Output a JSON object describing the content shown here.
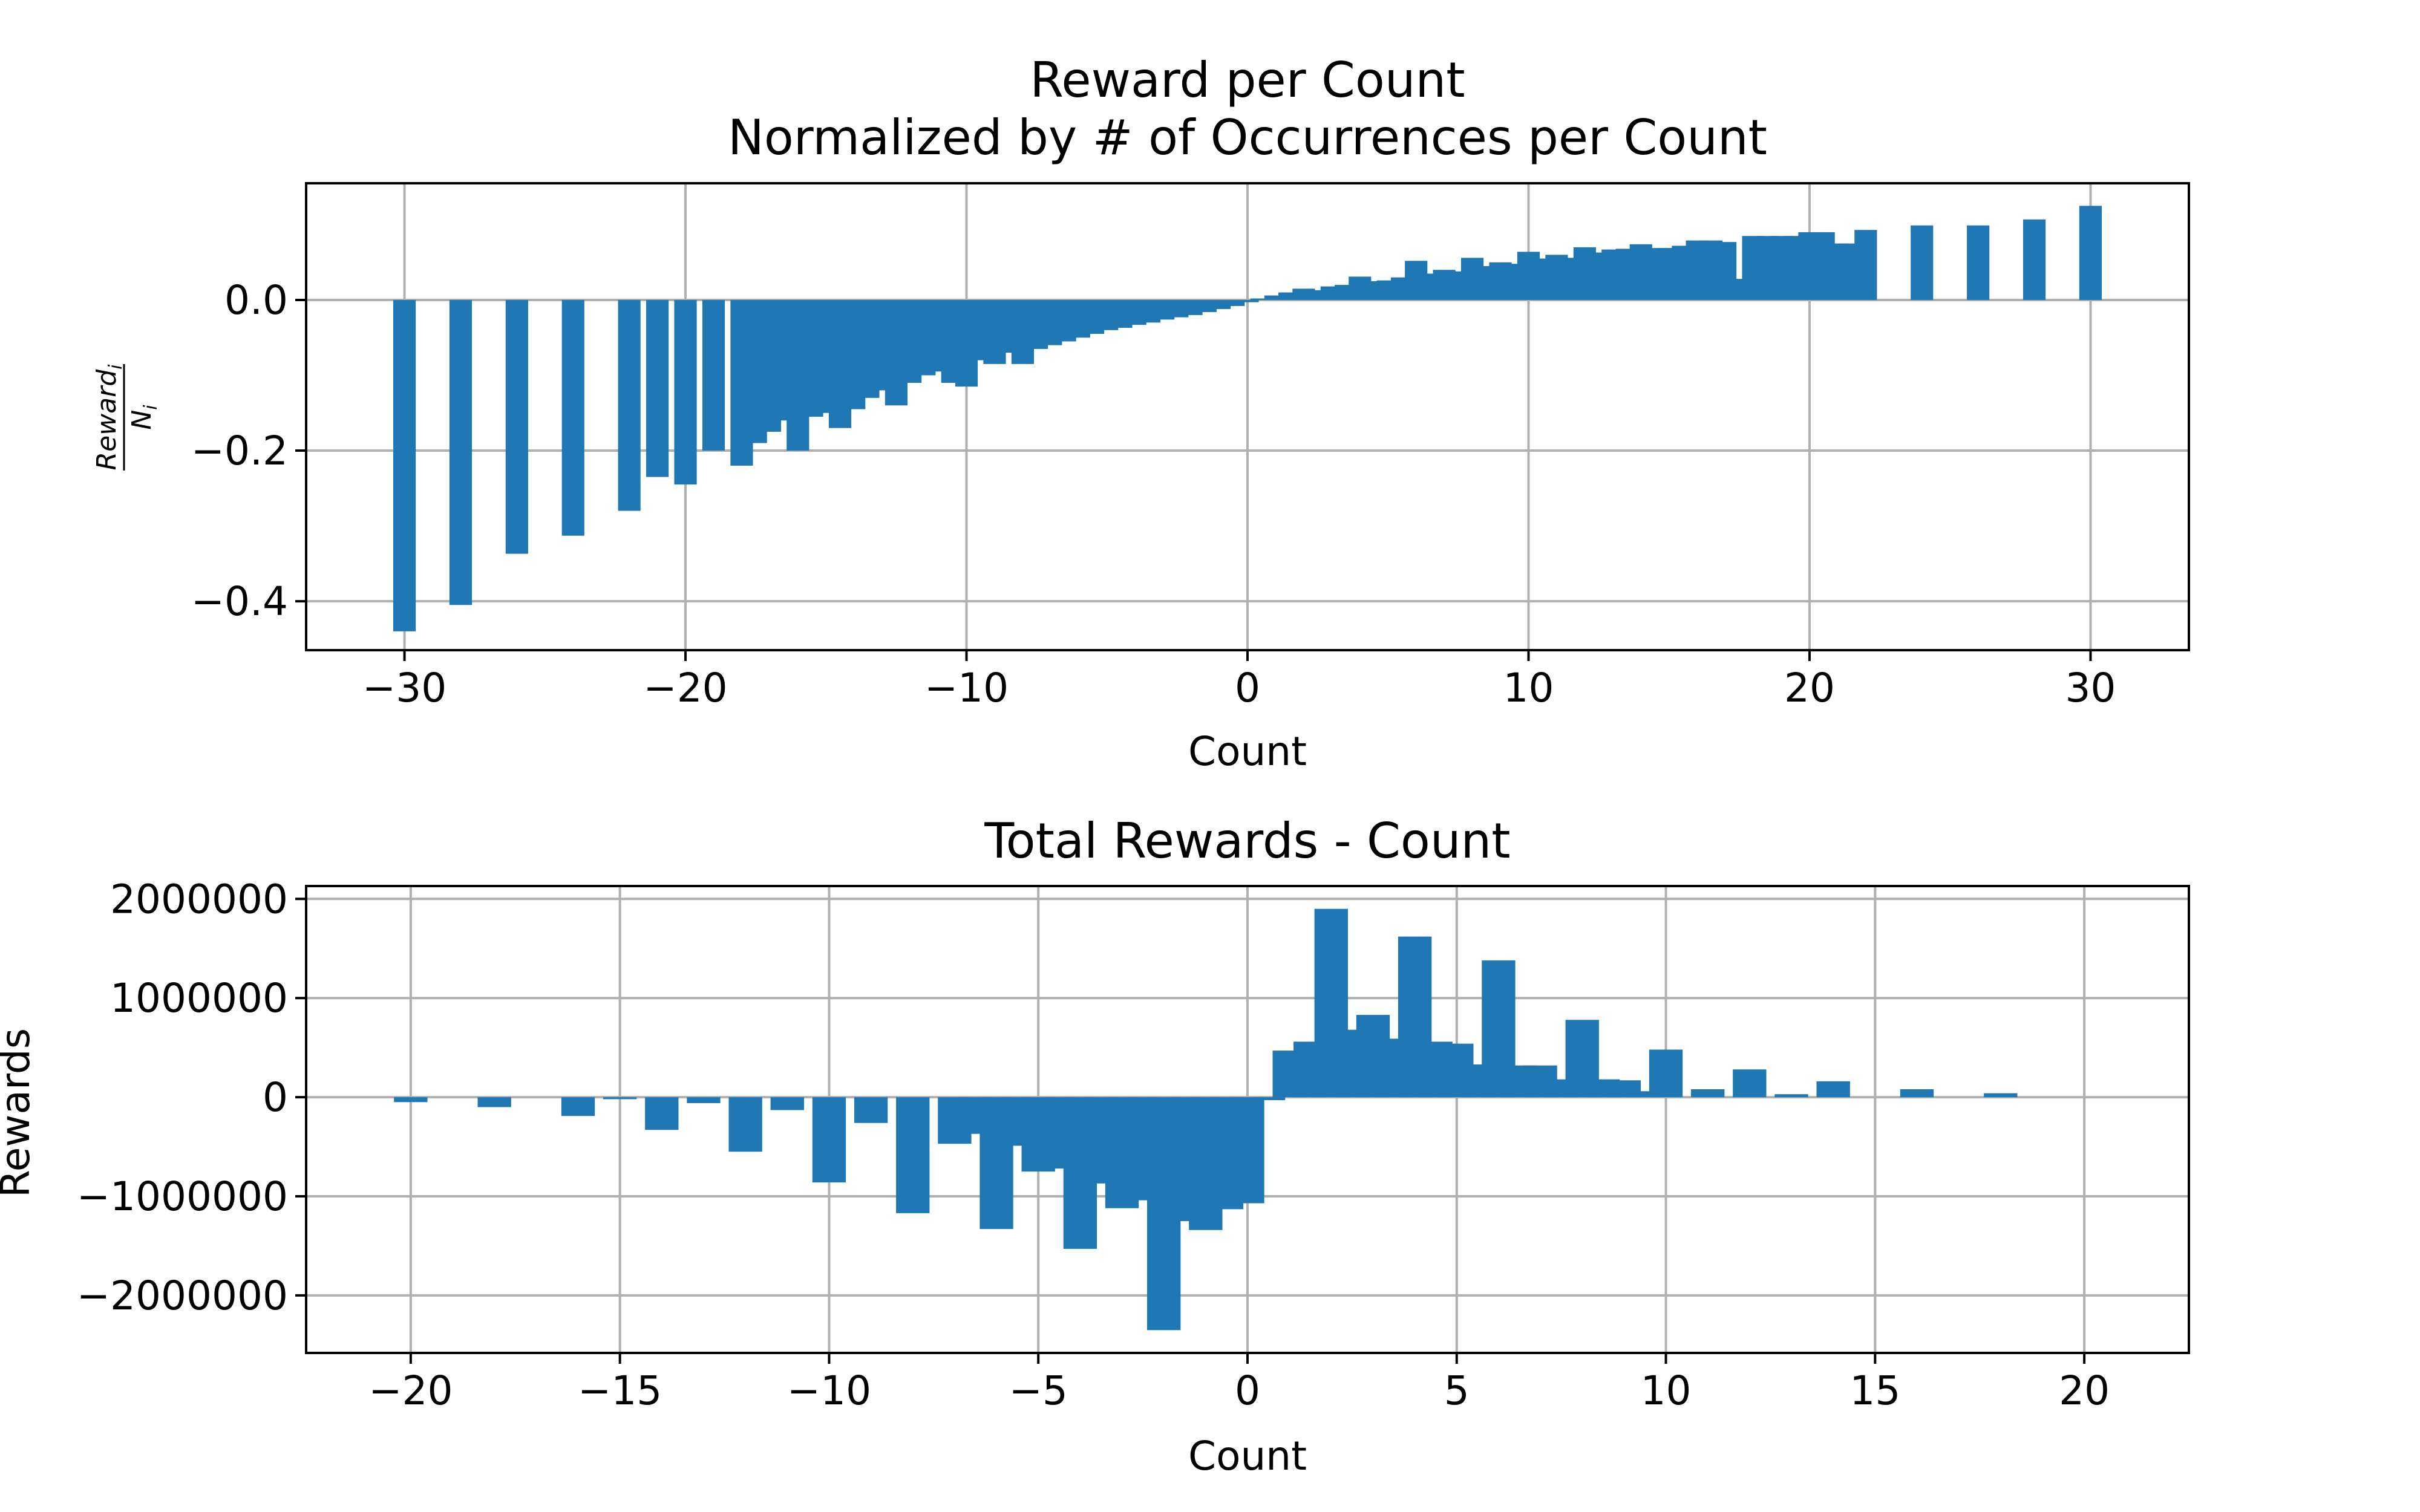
{
  "colors": {
    "bar": "#1f77b4",
    "grid": "#b0b0b0",
    "frame": "#000000",
    "background": "#ffffff"
  },
  "chart_data": [
    {
      "type": "bar",
      "title": "Reward per Count\nNormalized by # of Occurrences per Count",
      "title_lines": [
        "Reward per Count",
        "Normalized by # of Occurrences per Count"
      ],
      "xlabel": "Count",
      "ylabel": "Reward_i / N_i",
      "ylabel_num": "Reward",
      "ylabel_num_sub": "i",
      "ylabel_den": "N",
      "ylabel_den_sub": "i",
      "xlim": [
        -33.5,
        33.5
      ],
      "ylim": [
        -0.465,
        0.155
      ],
      "xticks": [
        -30,
        -20,
        -10,
        0,
        10,
        20,
        30
      ],
      "xtick_labels": [
        "−30",
        "−20",
        "−10",
        "0",
        "10",
        "20",
        "30"
      ],
      "yticks": [
        -0.4,
        -0.2,
        0.0
      ],
      "ytick_labels": [
        "−0.4",
        "−0.2",
        "0.0"
      ],
      "grid": true,
      "x": [
        -30,
        -28,
        -26,
        -24,
        -22,
        -21,
        -20,
        -19,
        -18,
        -17.5,
        -17,
        -16.5,
        -16,
        -15.5,
        -15,
        -14.5,
        -14,
        -13.5,
        -13,
        -12.5,
        -12,
        -11.5,
        -11,
        -10.5,
        -10,
        -9.5,
        -9,
        -8.5,
        -8,
        -7.5,
        -7,
        -6.5,
        -6,
        -5.5,
        -5,
        -4.5,
        -4,
        -3.5,
        -3,
        -2.5,
        -2,
        -1.5,
        -1,
        -0.5,
        0,
        0.5,
        1,
        1.5,
        2,
        2.5,
        3,
        3.5,
        4,
        4.5,
        5,
        5.5,
        6,
        6.5,
        7,
        7.5,
        8,
        8.5,
        9,
        9.5,
        10,
        10.5,
        11,
        11.5,
        12,
        12.5,
        13,
        13.5,
        14,
        14.5,
        15,
        15.5,
        16,
        16.5,
        17,
        17.5,
        18,
        18.5,
        19,
        19.5,
        20,
        20.5,
        21,
        21.5,
        22,
        24,
        26,
        28,
        30
      ],
      "values": [
        -0.44,
        -0.405,
        -0.337,
        -0.313,
        -0.28,
        -0.235,
        -0.245,
        -0.2,
        -0.22,
        -0.19,
        -0.175,
        -0.16,
        -0.2,
        -0.155,
        -0.15,
        -0.17,
        -0.145,
        -0.13,
        -0.12,
        -0.14,
        -0.11,
        -0.1,
        -0.095,
        -0.11,
        -0.115,
        -0.08,
        -0.085,
        -0.07,
        -0.085,
        -0.065,
        -0.06,
        -0.055,
        -0.05,
        -0.045,
        -0.04,
        -0.037,
        -0.033,
        -0.03,
        -0.026,
        -0.023,
        -0.02,
        -0.016,
        -0.012,
        -0.008,
        -0.003,
        0.002,
        0.006,
        0.01,
        0.015,
        0.013,
        0.018,
        0.02,
        0.031,
        0.025,
        0.026,
        0.03,
        0.052,
        0.035,
        0.04,
        0.038,
        0.056,
        0.045,
        0.05,
        0.048,
        0.064,
        0.055,
        0.06,
        0.056,
        0.07,
        0.063,
        0.067,
        0.068,
        0.074,
        0.069,
        0.069,
        0.072,
        0.079,
        0.079,
        0.077,
        0.028,
        0.085,
        0.085,
        0.085,
        0.085,
        0.09,
        0.09,
        0.075,
        0.075,
        0.093,
        0.099,
        0.099,
        0.107,
        0.125
      ]
    },
    {
      "type": "bar",
      "title": "Total Rewards - Count",
      "xlabel": "Count",
      "ylabel": "Rewards",
      "xlim": [
        -22.5,
        22.5
      ],
      "ylim": [
        -2580000,
        2130000
      ],
      "xticks": [
        -20,
        -15,
        -10,
        -5,
        0,
        5,
        10,
        15,
        20
      ],
      "xtick_labels": [
        "−20",
        "−15",
        "−10",
        "−5",
        "0",
        "5",
        "10",
        "15",
        "20"
      ],
      "yticks": [
        -2000000,
        -1000000,
        0,
        1000000,
        2000000
      ],
      "ytick_labels": [
        "−2000000",
        "−1000000",
        "0",
        "1000000",
        "2000000"
      ],
      "grid": true,
      "x": [
        -20,
        -18,
        -16,
        -15,
        -14,
        -13,
        -12,
        -11,
        -10,
        -9,
        -8,
        -7,
        -6.5,
        -6,
        -5.5,
        -5,
        -4.5,
        -4,
        -3.5,
        -3,
        -2.5,
        -2,
        -1.5,
        -1,
        -0.5,
        0,
        0.5,
        1,
        1.5,
        2,
        2.5,
        3,
        3.5,
        4,
        4.5,
        5,
        5.5,
        6,
        6.5,
        7,
        7.5,
        8,
        8.5,
        9,
        9.5,
        10,
        11,
        12,
        13,
        14,
        16,
        18
      ],
      "values": [
        -50000,
        -100000,
        -190000,
        -20000,
        -330000,
        -60000,
        -550000,
        -130000,
        -860000,
        -260000,
        -1170000,
        -470000,
        -370000,
        -1330000,
        -490000,
        -750000,
        -720000,
        -1530000,
        -870000,
        -1120000,
        -1040000,
        -2350000,
        -1250000,
        -1340000,
        -1130000,
        -1070000,
        -30000,
        470000,
        560000,
        1900000,
        680000,
        830000,
        590000,
        1620000,
        560000,
        540000,
        330000,
        1380000,
        320000,
        320000,
        180000,
        780000,
        180000,
        170000,
        60000,
        480000,
        80000,
        280000,
        30000,
        160000,
        80000,
        40000
      ]
    }
  ]
}
